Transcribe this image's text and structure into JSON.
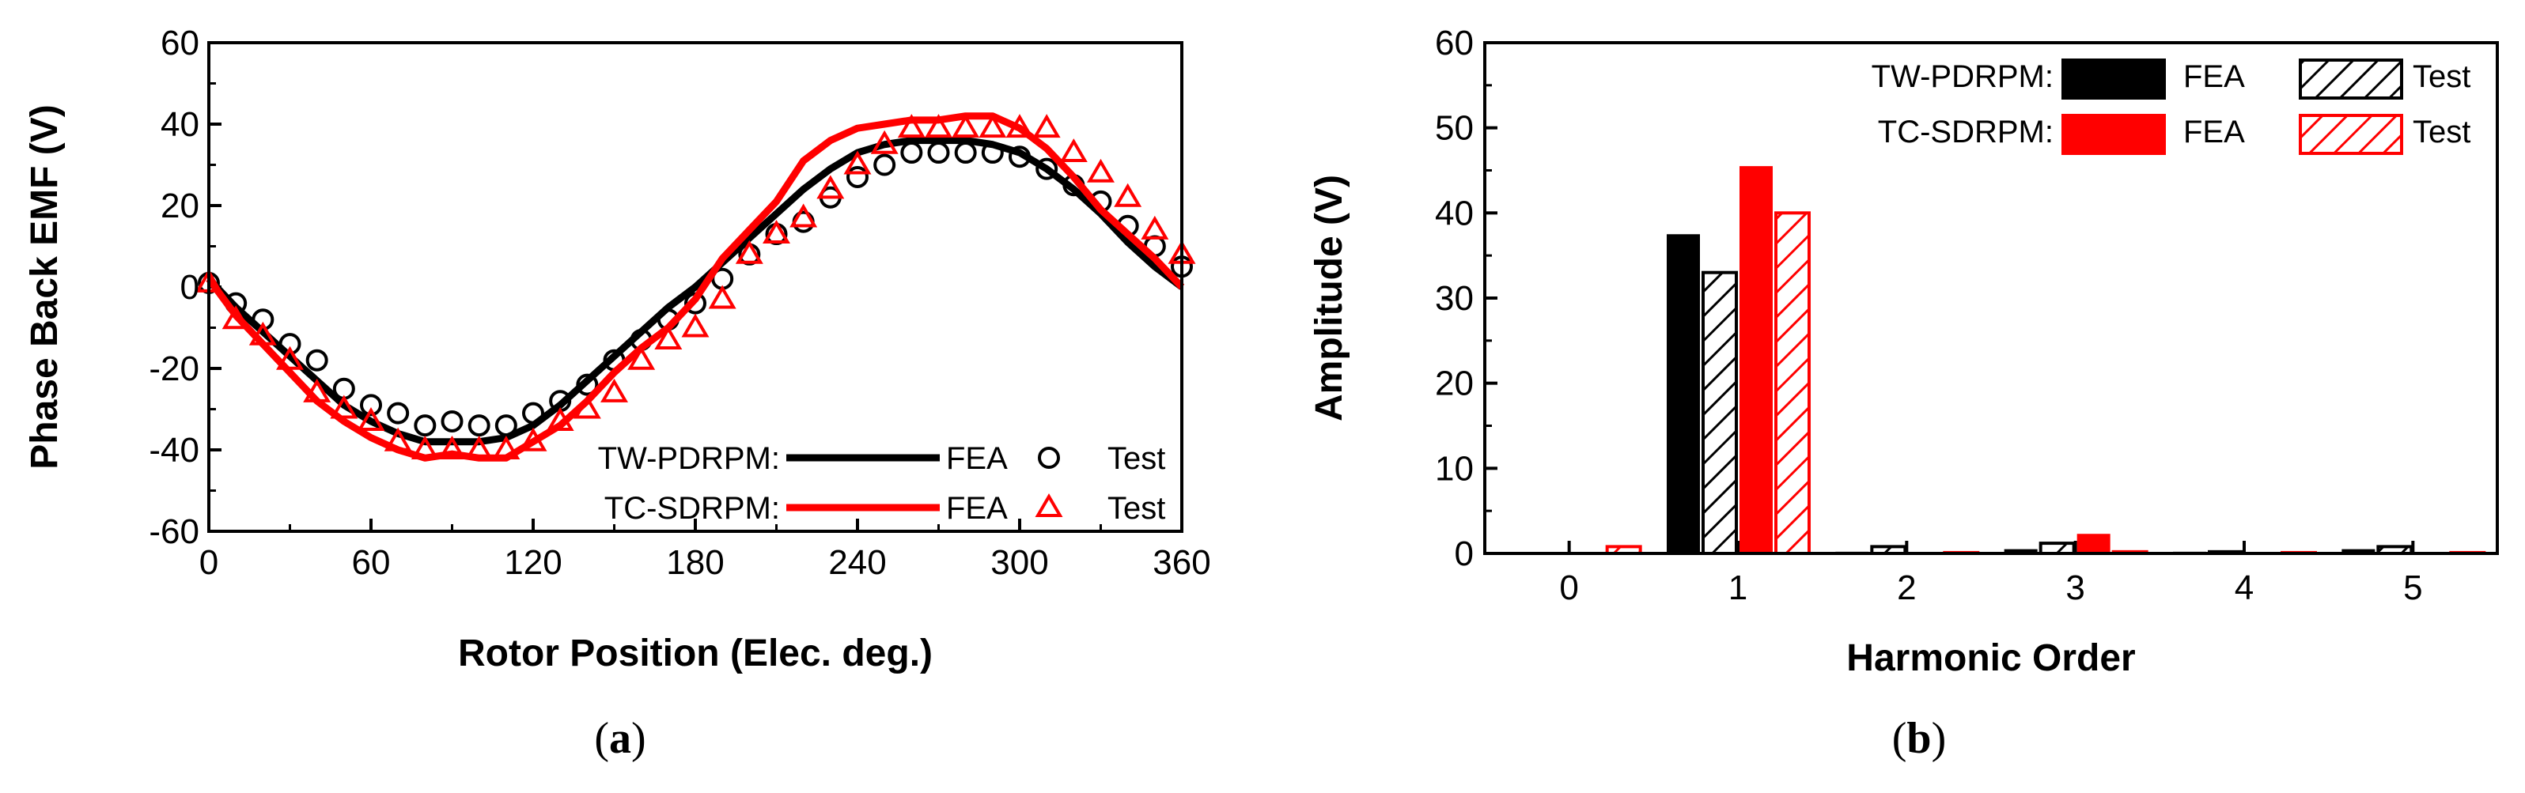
{
  "chart_data": [
    {
      "type": "line",
      "panel": "(a)",
      "panel_letter": "a",
      "xlabel": "Rotor Position (Elec. deg.)",
      "ylabel": "Phase Back EMF (V)",
      "xlim": [
        0,
        360
      ],
      "ylim": [
        -60,
        60
      ],
      "xticks": [
        0,
        60,
        120,
        180,
        240,
        300,
        360
      ],
      "yticks": [
        -60,
        -40,
        -20,
        0,
        20,
        40,
        60
      ],
      "x": [
        0,
        10,
        20,
        30,
        40,
        50,
        60,
        70,
        80,
        90,
        100,
        110,
        120,
        130,
        140,
        150,
        160,
        170,
        180,
        190,
        200,
        210,
        220,
        230,
        240,
        250,
        260,
        270,
        280,
        290,
        300,
        310,
        320,
        330,
        340,
        350,
        360
      ],
      "series": [
        {
          "name": "TW-PDRPM FEA",
          "style": "line",
          "color": "#000000",
          "values": [
            2,
            -5,
            -11,
            -17,
            -23,
            -29,
            -33,
            -36,
            -38,
            -38,
            -38,
            -37,
            -34,
            -29,
            -23,
            -17,
            -11,
            -5,
            0,
            6,
            12,
            18,
            24,
            29,
            33,
            35,
            36,
            36,
            36,
            35,
            33,
            29,
            24,
            18,
            11,
            5,
            0
          ]
        },
        {
          "name": "TW-PDRPM Test",
          "style": "circle",
          "color": "#000000",
          "values": [
            1,
            -4,
            -8,
            -14,
            -18,
            -25,
            -29,
            -31,
            -34,
            -33,
            -34,
            -34,
            -31,
            -28,
            -24,
            -18,
            -13,
            -8,
            -4,
            2,
            8,
            13,
            16,
            22,
            27,
            30,
            33,
            33,
            33,
            33,
            32,
            29,
            25,
            21,
            15,
            10,
            5
          ]
        },
        {
          "name": "TC-SDRPM FEA",
          "style": "line",
          "color": "#ff0000",
          "values": [
            2,
            -7,
            -14,
            -21,
            -28,
            -33,
            -37,
            -40,
            -42,
            -41,
            -42,
            -42,
            -38,
            -34,
            -28,
            -21,
            -15,
            -10,
            -3,
            7,
            14,
            21,
            31,
            36,
            39,
            40,
            41,
            41,
            42,
            42,
            39,
            34,
            27,
            19,
            13,
            7,
            0
          ]
        },
        {
          "name": "TC-SDRPM Test",
          "style": "triangle",
          "color": "#ff0000",
          "values": [
            1,
            -8,
            -12,
            -18,
            -26,
            -30,
            -33,
            -38,
            -40,
            -40,
            -40,
            -40,
            -38,
            -33,
            -30,
            -26,
            -18,
            -13,
            -10,
            -3,
            8,
            13,
            17,
            24,
            30,
            35,
            39,
            39,
            39,
            39,
            39,
            39,
            33,
            28,
            22,
            14,
            8
          ]
        }
      ],
      "legend": {
        "rows": [
          {
            "label": "TW-PDRPM:",
            "fea": "FEA",
            "test": "Test",
            "color": "#000000"
          },
          {
            "label": "TC-SDRPM:",
            "fea": "FEA",
            "test": "Test",
            "color": "#ff0000"
          }
        ],
        "placement": "bottom-right"
      }
    },
    {
      "type": "bar",
      "panel": "(b)",
      "panel_letter": "b",
      "xlabel": "Harmonic Order",
      "ylabel": "Amplitude (V)",
      "categories": [
        "0",
        "1",
        "2",
        "3",
        "4",
        "5"
      ],
      "ylim": [
        0,
        60
      ],
      "yticks": [
        0,
        10,
        20,
        30,
        40,
        50,
        60
      ],
      "series": [
        {
          "name": "TW-PDRPM FEA",
          "fill": "solid",
          "color": "#000000",
          "values": [
            0,
            37.5,
            0.2,
            0.5,
            0.2,
            0.5
          ]
        },
        {
          "name": "TW-PDRPM Test",
          "fill": "hatch",
          "color": "#000000",
          "values": [
            0,
            33,
            0.8,
            1.2,
            0.2,
            0.8
          ]
        },
        {
          "name": "TC-SDRPM FEA",
          "fill": "solid",
          "color": "#ff0000",
          "values": [
            0,
            45.5,
            0.1,
            2.3,
            0.1,
            0.1
          ]
        },
        {
          "name": "TC-SDRPM Test",
          "fill": "hatch",
          "color": "#ff0000",
          "values": [
            0.8,
            40,
            0.1,
            0.2,
            0.1,
            0.1
          ]
        }
      ],
      "legend": {
        "rows": [
          {
            "label": "TW-PDRPM:",
            "fea": "FEA",
            "test": "Test",
            "color": "#000000"
          },
          {
            "label": "TC-SDRPM:",
            "fea": "FEA",
            "test": "Test",
            "color": "#ff0000"
          }
        ],
        "placement": "top-right"
      }
    }
  ]
}
